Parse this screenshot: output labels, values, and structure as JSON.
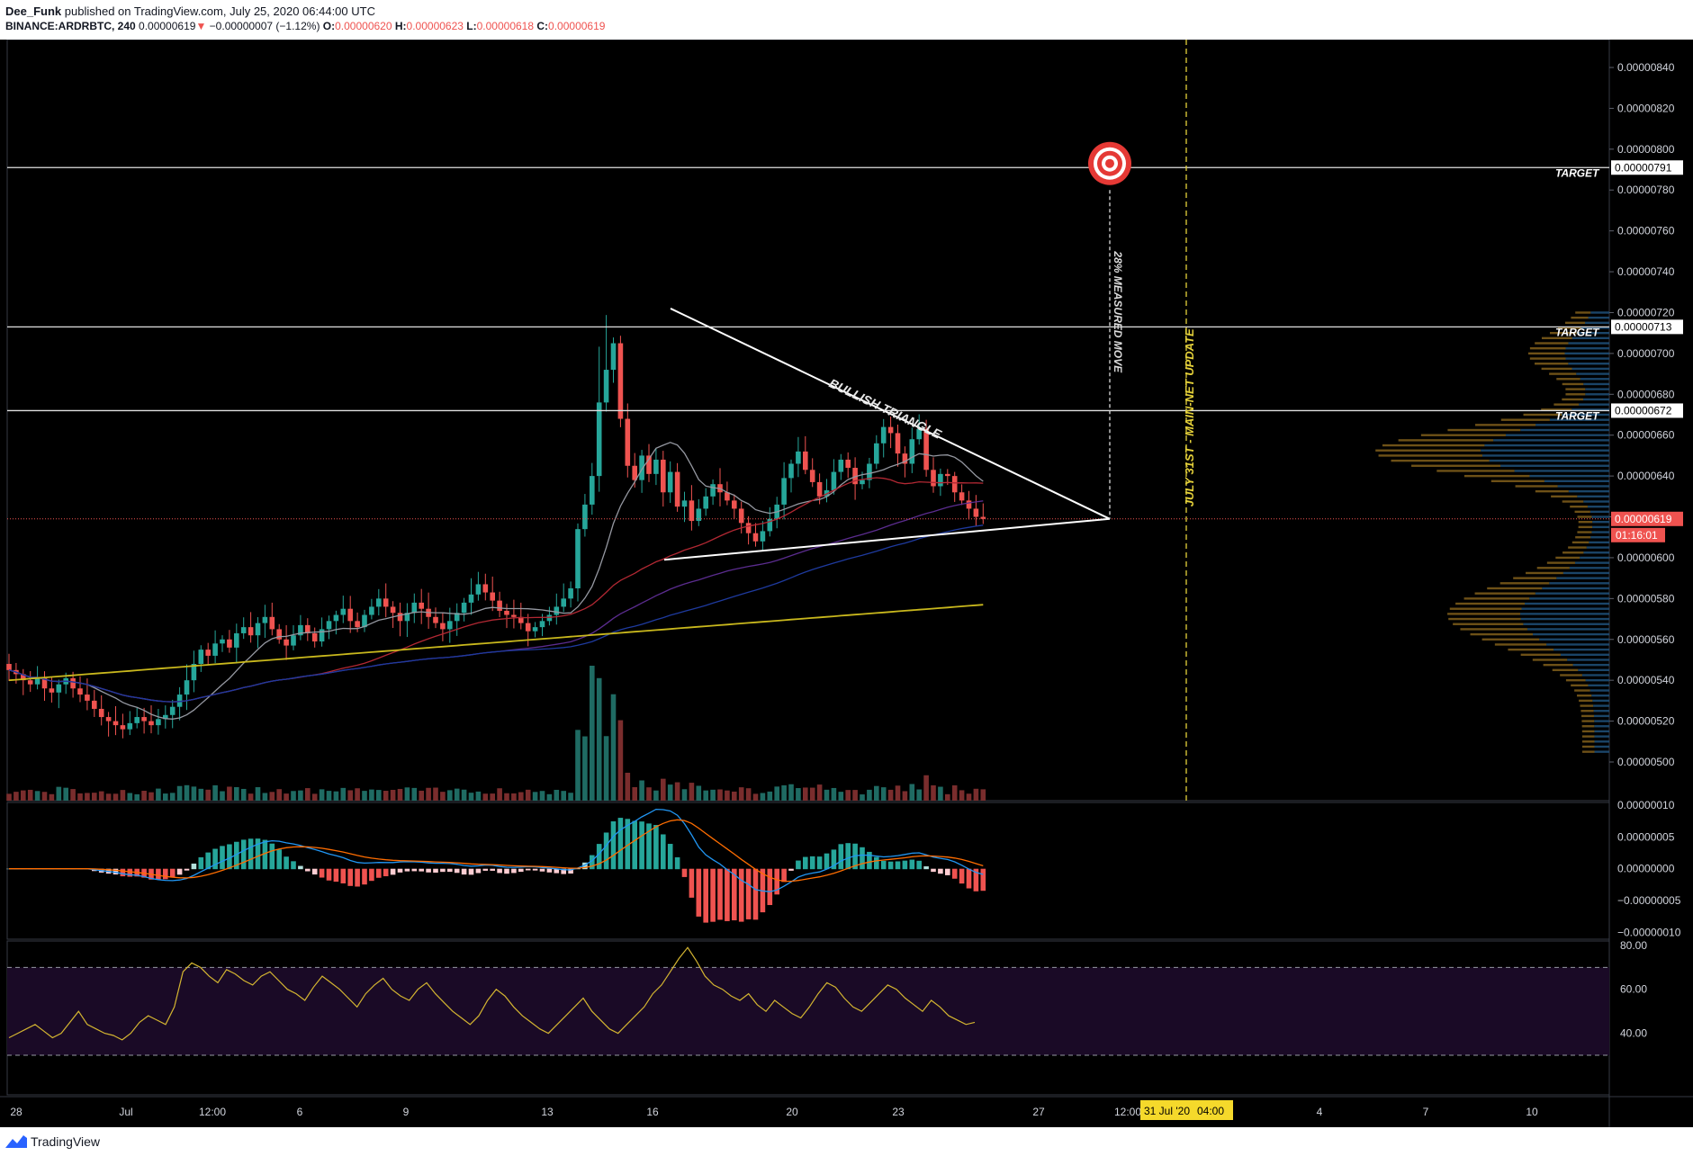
{
  "header": {
    "author": "Dee_Funk",
    "published_text": "published on TradingView.com, July 25, 2020 06:44:00 UTC",
    "symbol": "BINANCE:ARDRBTC, 240",
    "price": "0.00000619",
    "arrow": "▼",
    "change": "−0.00000007 (−1.12%)",
    "o_label": "O:",
    "o_val": "0.00000620",
    "h_label": "H:",
    "h_val": "0.00000623",
    "l_label": "L:",
    "l_val": "0.00000618",
    "c_label": "C:",
    "c_val": "0.00000619"
  },
  "footer": {
    "brand": "TradingView",
    "logo_icon": "tradingview-logo-icon"
  },
  "chart_data": {
    "type": "candlestick",
    "price_axis": {
      "ticks": [
        "0.00000840",
        "0.00000820",
        "0.00000800",
        "0.00000780",
        "0.00000760",
        "0.00000740",
        "0.00000720",
        "0.00000700",
        "0.00000680",
        "0.00000660",
        "0.00000640",
        "0.00000620",
        "0.00000600",
        "0.00000580",
        "0.00000560",
        "0.00000540",
        "0.00000520",
        "0.00000500"
      ],
      "tick_values": [
        840,
        820,
        800,
        780,
        760,
        740,
        720,
        700,
        680,
        660,
        640,
        620,
        600,
        580,
        560,
        540,
        520,
        500
      ],
      "unit": "satoshi-scaled (×1e-8 BTC)",
      "range": [
        492,
        862
      ]
    },
    "time_axis": {
      "labels": [
        "28",
        "Jul",
        "12:00",
        "6",
        "9",
        "13",
        "16",
        "20",
        "23",
        "27",
        "12:00",
        "4",
        "7",
        "10"
      ],
      "highlight_label": "31 Jul '20",
      "highlight_time": "04:00"
    },
    "horizontal_levels": [
      {
        "value": 791,
        "label": "0.00000791",
        "tag": "TARGET"
      },
      {
        "value": 713,
        "label": "0.00000713",
        "tag": "TARGET"
      },
      {
        "value": 672,
        "label": "0.00000672",
        "tag": "TARGET"
      }
    ],
    "last_price": {
      "value": 619,
      "label": "0.00000619",
      "countdown": "01:16:01"
    },
    "annotations": {
      "triangle": "BULLISH TRIANGLE",
      "measured_move": "28% MEASURED MOVE",
      "vertical_event": "JULY 31ST - MAIN-NET UPDATE",
      "target_icon": "target-bullseye-icon"
    },
    "candles_close": [
      545,
      543,
      540,
      538,
      541,
      536,
      534,
      538,
      541,
      536,
      533,
      530,
      526,
      522,
      520,
      518,
      516,
      519,
      522,
      520,
      518,
      521,
      523,
      527,
      533,
      540,
      548,
      555,
      552,
      558,
      560,
      556,
      563,
      566,
      562,
      568,
      571,
      565,
      560,
      557,
      562,
      567,
      563,
      559,
      565,
      569,
      572,
      575,
      569,
      566,
      572,
      576,
      580,
      576,
      573,
      569,
      573,
      578,
      575,
      571,
      568,
      565,
      569,
      573,
      578,
      582,
      587,
      583,
      579,
      574,
      572,
      571,
      568,
      564,
      566,
      569,
      572,
      576,
      580,
      585,
      614,
      626,
      640,
      676,
      692,
      705,
      668,
      645,
      638,
      650,
      641,
      648,
      632,
      642,
      625,
      628,
      618,
      624,
      630,
      636,
      632,
      628,
      624,
      617,
      612,
      608,
      613,
      619,
      626,
      639,
      646,
      652,
      643,
      637,
      630,
      633,
      642,
      648,
      644,
      636,
      638,
      646,
      656,
      664,
      661,
      651,
      646,
      658,
      663,
      643,
      635,
      641,
      640,
      632,
      628,
      624,
      620,
      619
    ],
    "macd_axis": {
      "ticks": [
        "0.00000010",
        "0.00000005",
        "0.00000000",
        "−0.00000005",
        "−0.00000010"
      ],
      "tick_values": [
        10,
        5,
        0,
        -5,
        -10
      ]
    },
    "rsi_axis": {
      "ticks": [
        "80.00",
        "60.00",
        "40.00"
      ],
      "tick_values": [
        80,
        60,
        40
      ],
      "bands": [
        70,
        30
      ]
    },
    "rsi": [
      38,
      40,
      42,
      44,
      41,
      38,
      40,
      45,
      50,
      44,
      42,
      40,
      39,
      37,
      40,
      45,
      48,
      46,
      44,
      52,
      68,
      72,
      70,
      66,
      63,
      69,
      67,
      64,
      62,
      66,
      68,
      64,
      60,
      58,
      55,
      61,
      66,
      63,
      60,
      56,
      52,
      58,
      62,
      65,
      60,
      57,
      55,
      60,
      63,
      58,
      54,
      50,
      47,
      44,
      48,
      55,
      60,
      57,
      52,
      48,
      45,
      42,
      40,
      44,
      48,
      52,
      56,
      50,
      46,
      42,
      40,
      44,
      48,
      52,
      58,
      62,
      68,
      74,
      79,
      73,
      66,
      62,
      60,
      57,
      55,
      58,
      53,
      50,
      55,
      52,
      49,
      47,
      52,
      58,
      63,
      61,
      56,
      52,
      50,
      54,
      58,
      62,
      60,
      56,
      53,
      50,
      55,
      52,
      48,
      46,
      44,
      45
    ]
  }
}
